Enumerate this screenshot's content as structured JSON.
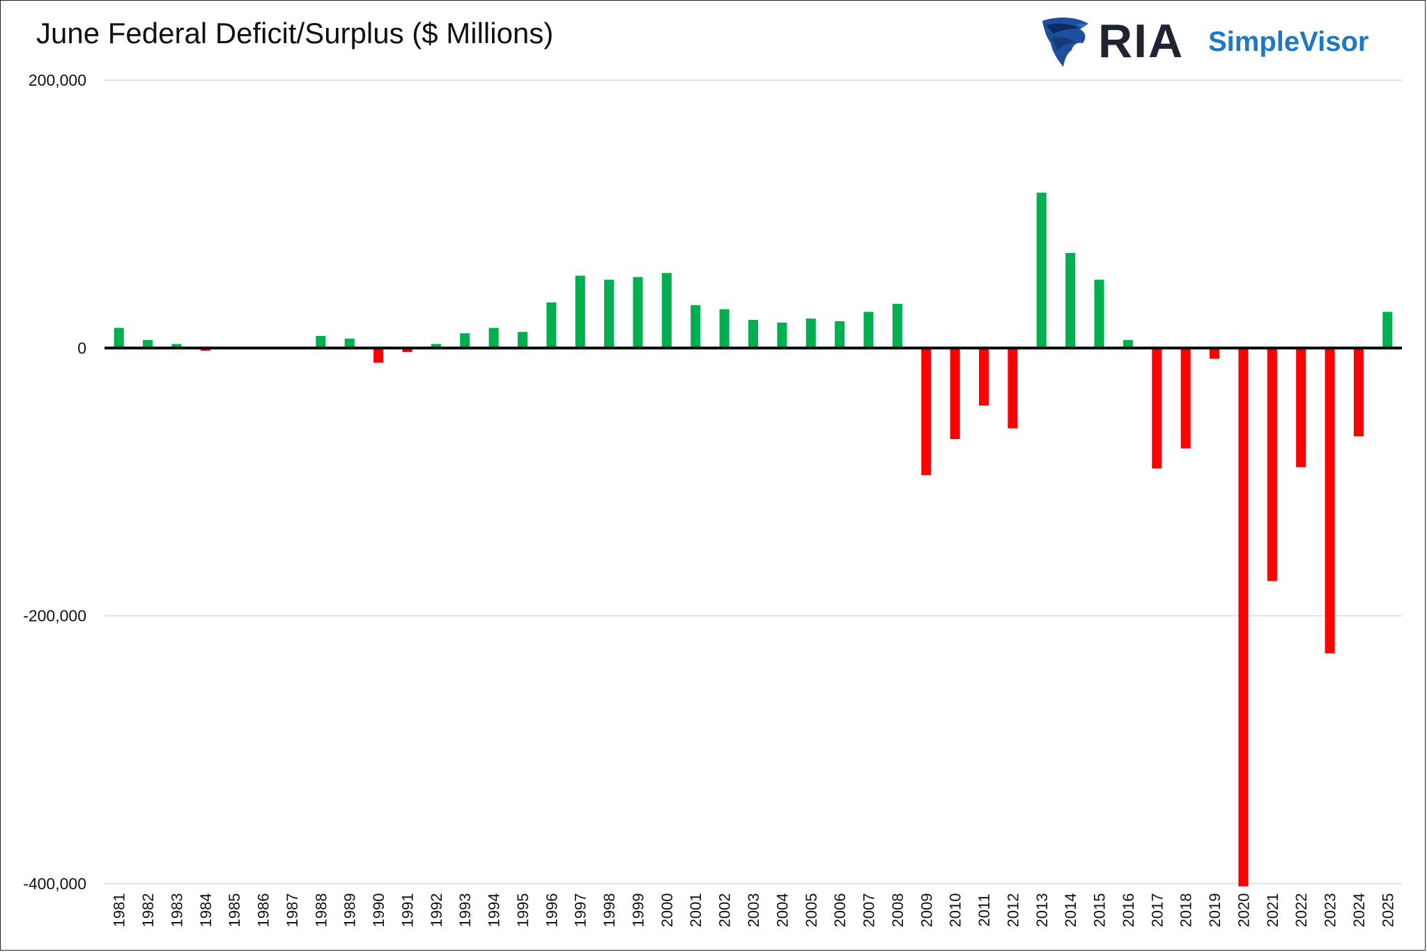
{
  "page": {
    "title": "June Federal Deficit/Surplus ($ Millions)",
    "logo_text_1": "RIA",
    "logo_text_2": "SimpleVisor"
  },
  "colors": {
    "positive": "#00b050",
    "negative": "#ff0000",
    "gridline": "#d9d9d9",
    "zero_line": "#000000",
    "logo_dark": "#1f2430",
    "logo_blue": "#1e78c2"
  },
  "chart_data": {
    "type": "bar",
    "title": "June Federal Deficit/Surplus ($ Millions)",
    "xlabel": "",
    "ylabel": "",
    "ylim": [
      -400000,
      200000
    ],
    "yticks": [
      200000,
      0,
      -200000,
      -400000
    ],
    "ytick_labels": [
      "200,000",
      "0",
      "-200,000",
      "-400,000"
    ],
    "grid": true,
    "legend": "none",
    "categories": [
      "1981",
      "1982",
      "1983",
      "1984",
      "1985",
      "1986",
      "1987",
      "1988",
      "1989",
      "1990",
      "1991",
      "1992",
      "1993",
      "1994",
      "1995",
      "1996",
      "1997",
      "1998",
      "1999",
      "2000",
      "2001",
      "2002",
      "2003",
      "2004",
      "2005",
      "2006",
      "2007",
      "2008",
      "2009",
      "2010",
      "2011",
      "2012",
      "2013",
      "2014",
      "2015",
      "2016",
      "2017",
      "2018",
      "2019",
      "2020",
      "2021",
      "2022",
      "2023",
      "2024",
      "2025"
    ],
    "values": [
      15000,
      6000,
      3000,
      -2000,
      0,
      0,
      0,
      9000,
      7000,
      -11000,
      -3000,
      3000,
      11000,
      15000,
      12000,
      34000,
      54000,
      51000,
      53000,
      56000,
      32000,
      29000,
      21000,
      19000,
      22000,
      20000,
      27000,
      33000,
      -95000,
      -68000,
      -43000,
      -60000,
      116000,
      71000,
      51000,
      6000,
      -90000,
      -75000,
      -8000,
      -402000,
      -174000,
      -89000,
      -228000,
      -66000,
      27000
    ]
  }
}
